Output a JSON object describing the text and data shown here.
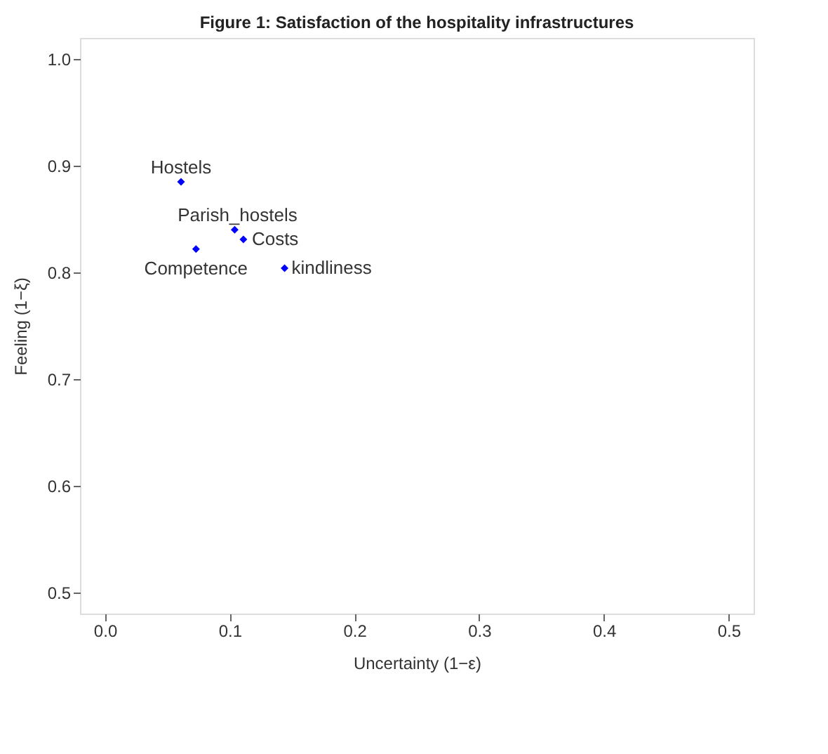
{
  "chart_data": {
    "type": "scatter",
    "title": "Figure 1: Satisfaction of the hospitality infrastructures",
    "xlabel": "Uncertainty (1−ε)",
    "ylabel": "Feeling (1−ξ)",
    "xlim": [
      -0.02,
      0.52
    ],
    "ylim": [
      0.48,
      1.02
    ],
    "xticks": [
      {
        "value": 0,
        "label": "0.0"
      },
      0.1,
      0.2,
      0.3,
      0.4,
      0.5
    ],
    "yticks": [
      0.5,
      0.6,
      0.7,
      0.8,
      0.9,
      {
        "value": 1,
        "label": "1.0"
      }
    ],
    "x": [
      0.061,
      0.104,
      0.111,
      0.073,
      0.144
    ],
    "series": [
      {
        "color": "#0000ff",
        "values": [
          0.885,
          0.84,
          0.831,
          0.822,
          0.804
        ]
      }
    ],
    "annotations": [
      {
        "text": "Hostels",
        "x": 0.061,
        "y": 0.885
      },
      {
        "text": "Parish_hostels",
        "x": 0.104,
        "y": 0.84
      },
      {
        "text": "Costs",
        "x": 0.111,
        "y": 0.831
      },
      {
        "text": "Competence",
        "x": 0.073,
        "y": 0.822
      },
      {
        "text": "kindliness",
        "x": 0.144,
        "y": 0.804
      }
    ],
    "marker": "diamond",
    "grid": false
  }
}
